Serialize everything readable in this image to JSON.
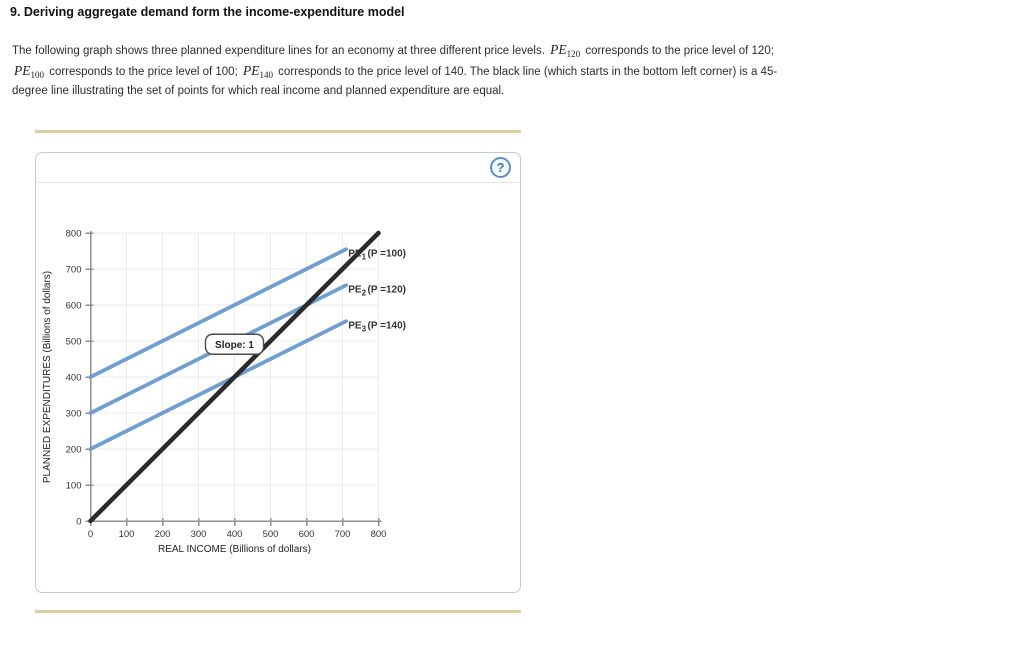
{
  "header": {
    "title": "9. Deriving aggregate demand form the income-expenditure model"
  },
  "paragraph": {
    "lines": [
      [
        {
          "t": "The following graph shows three planned expenditure lines for an economy at three different price levels. "
        },
        {
          "math": "PE",
          "sub": "120"
        },
        {
          "t": " corresponds to the price level of 120;"
        }
      ],
      [
        {
          "math": "PE",
          "sub": "100"
        },
        {
          "t": " corresponds to the price level of 100; "
        },
        {
          "math": "PE",
          "sub": "140"
        },
        {
          "t": " corresponds to the price level of 140. The black line (which starts in the bottom left corner) is a 45-"
        }
      ],
      [
        {
          "t": "degree line illustrating the set of points for which real income and planned expenditure are equal."
        }
      ]
    ]
  },
  "panel": {
    "help_label": "?"
  },
  "chart_data": {
    "type": "line",
    "title": "",
    "xlabel": "REAL INCOME (Billions of dollars)",
    "ylabel": "PLANNED EXPENDITURES (Billions of dollars)",
    "xlim": [
      0,
      800
    ],
    "ylim": [
      0,
      800
    ],
    "xticks": [
      0,
      100,
      200,
      300,
      400,
      500,
      600,
      700,
      800
    ],
    "yticks": [
      0,
      100,
      200,
      300,
      400,
      500,
      600,
      700,
      800
    ],
    "grid": true,
    "series": [
      {
        "id": "pe1",
        "name": "Planned expenditure at price level 100",
        "label_base": "PE",
        "label_sub": "1",
        "label_rest": "(P =100)",
        "color": "#6f9ecf",
        "width": 3.8,
        "points": [
          [
            0,
            400
          ],
          [
            710,
            755
          ]
        ],
        "label_anchor": [
          716,
          744
        ]
      },
      {
        "id": "pe2",
        "name": "Planned expenditure at price level 120",
        "label_base": "PE",
        "label_sub": "2",
        "label_rest": "(P =120)",
        "color": "#6f9ecf",
        "width": 3.8,
        "points": [
          [
            0,
            300
          ],
          [
            710,
            655
          ]
        ],
        "label_anchor": [
          716,
          644
        ]
      },
      {
        "id": "pe3",
        "name": "Planned expenditure at price level 140",
        "label_base": "PE",
        "label_sub": "3",
        "label_rest": "(P =140)",
        "color": "#6f9ecf",
        "width": 3.8,
        "points": [
          [
            0,
            200
          ],
          [
            710,
            555
          ]
        ],
        "label_anchor": [
          716,
          544
        ]
      },
      {
        "id": "deg45",
        "name": "45-degree line (real income = planned expenditure)",
        "label_base": "",
        "label_sub": "",
        "label_rest": "",
        "color": "#2b2b2b",
        "width": 4.6,
        "points": [
          [
            0,
            0
          ],
          [
            800,
            800
          ]
        ]
      }
    ],
    "annotation": {
      "text": "Slope: 1",
      "x": 400,
      "y": 491
    }
  },
  "colors": {
    "divider_gold": "#dbcf9e",
    "line_blue": "#6f9ecf",
    "line_black": "#2b2b2b",
    "axis": "#8f8f8f",
    "grid": "#ebebeb",
    "tick_text": "#333333",
    "help_blue": "#5b8ec8"
  }
}
